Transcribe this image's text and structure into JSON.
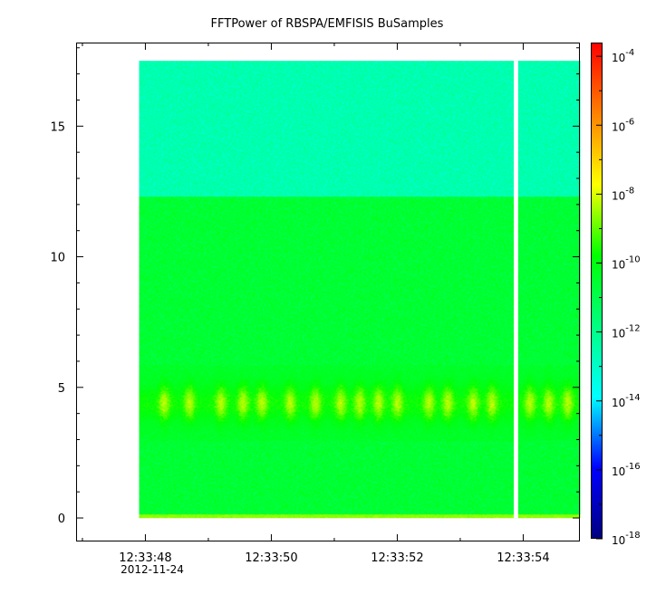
{
  "chart_data": {
    "type": "heatmap",
    "title": "FFTPower of RBSPA/EMFISIS  BuSamples",
    "xlabel": "",
    "ylabel": "",
    "x_tick_labels": [
      "12:33:48",
      "12:33:50",
      "12:33:52",
      "12:33:54"
    ],
    "x_tick_values_s": [
      48,
      50,
      52,
      54
    ],
    "x_date_label": "2012-11-24",
    "xlim_s": [
      46.9,
      54.9
    ],
    "ylim": [
      -0.9,
      18.2
    ],
    "y_tick_values": [
      0,
      5,
      10,
      15
    ],
    "y_tick_labels": [
      "0",
      "5",
      "10",
      "15"
    ],
    "data_extent": {
      "x_start_s": 47.9,
      "x_end_s": 54.9,
      "y_min": 0.0,
      "y_max": 17.5
    },
    "data_gap_s": [
      53.85,
      53.92
    ],
    "background_zones": [
      {
        "y_min": 12.3,
        "y_max": 17.5,
        "log10_power": -12.6
      },
      {
        "y_min": 0.0,
        "y_max": 12.3,
        "log10_power": -10.6
      }
    ],
    "emission_band": {
      "y_center": 4.4,
      "y_halfwidth": 0.9,
      "log10_power_peak": -8.3
    },
    "emission_bursts_s": [
      48.3,
      48.7,
      49.2,
      49.55,
      49.85,
      50.3,
      50.7,
      51.1,
      51.4,
      51.7,
      52.0,
      52.5,
      52.8,
      53.2,
      53.5,
      54.1,
      54.4,
      54.7
    ],
    "baseline_enhancement": {
      "y_max": 0.15,
      "log10_power": -8.6
    },
    "colorbar": {
      "scale": "log",
      "range": [
        1e-18,
        0.00025
      ],
      "tick_exponents": [
        "-4",
        "-6",
        "-8",
        "-10",
        "-12",
        "-14",
        "-16",
        "-18"
      ],
      "tick_base": "10",
      "colormap": [
        "#00007f",
        "#0000ff",
        "#00ffff",
        "#00ff80",
        "#00ff00",
        "#ffff00",
        "#ff8000",
        "#ff0000"
      ]
    }
  }
}
